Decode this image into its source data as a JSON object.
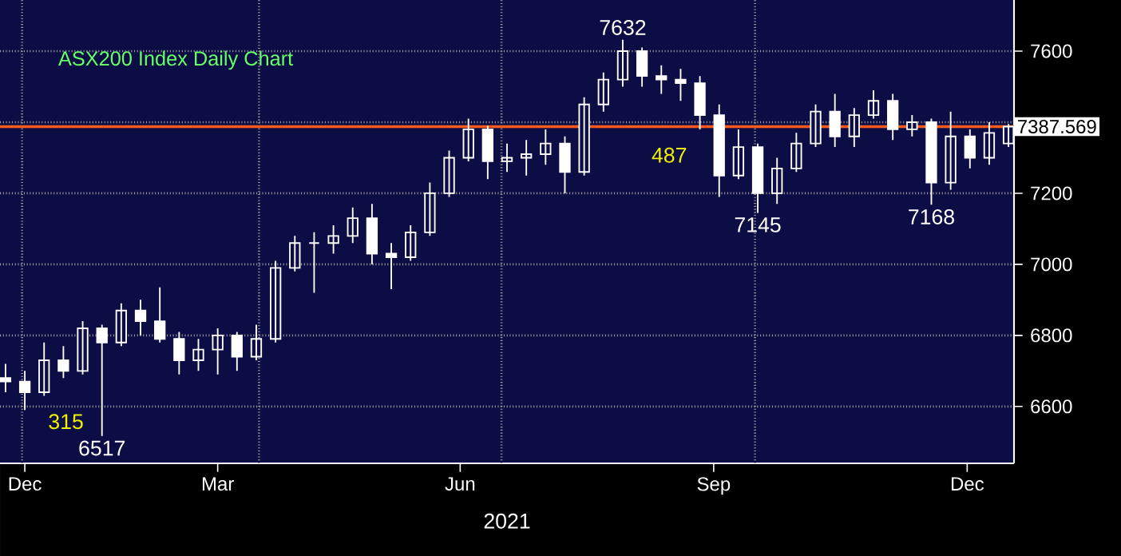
{
  "chart_data": {
    "type": "candlestick",
    "title": "ASX200 Index Daily Chart",
    "xlabel": "2021",
    "color": "#ffffff",
    "x": [
      "2020-12-23",
      "2020-12-30",
      "2021-01-06",
      "2021-01-13",
      "2021-01-20",
      "2021-01-27",
      "2021-02-03",
      "2021-02-10",
      "2021-02-17",
      "2021-02-24",
      "2021-03-03",
      "2021-03-10",
      "2021-03-17",
      "2021-03-24",
      "2021-03-31",
      "2021-04-07",
      "2021-04-14",
      "2021-04-21",
      "2021-04-28",
      "2021-05-05",
      "2021-05-12",
      "2021-05-19",
      "2021-05-26",
      "2021-06-02",
      "2021-06-09",
      "2021-06-16",
      "2021-06-23",
      "2021-06-30",
      "2021-07-07",
      "2021-07-14",
      "2021-07-21",
      "2021-07-28",
      "2021-08-04",
      "2021-08-11",
      "2021-08-18",
      "2021-08-25",
      "2021-09-01",
      "2021-09-08",
      "2021-09-15",
      "2021-09-22",
      "2021-09-29",
      "2021-10-06",
      "2021-10-13",
      "2021-10-20",
      "2021-10-27",
      "2021-11-03",
      "2021-11-10",
      "2021-11-17",
      "2021-11-24",
      "2021-12-01",
      "2021-12-08",
      "2021-12-15",
      "2021-12-22"
    ],
    "ohlc": [
      [
        6680,
        6720,
        6640,
        6670
      ],
      [
        6670,
        6700,
        6590,
        6640
      ],
      [
        6640,
        6780,
        6630,
        6730
      ],
      [
        6730,
        6770,
        6680,
        6700
      ],
      [
        6700,
        6840,
        6690,
        6820
      ],
      [
        6820,
        6830,
        6517,
        6780
      ],
      [
        6780,
        6890,
        6770,
        6870
      ],
      [
        6870,
        6900,
        6800,
        6840
      ],
      [
        6840,
        6935,
        6780,
        6790
      ],
      [
        6790,
        6810,
        6690,
        6730
      ],
      [
        6730,
        6790,
        6700,
        6760
      ],
      [
        6760,
        6820,
        6690,
        6800
      ],
      [
        6800,
        6810,
        6700,
        6740
      ],
      [
        6740,
        6830,
        6730,
        6790
      ],
      [
        6790,
        7010,
        6780,
        6990
      ],
      [
        6990,
        7080,
        6980,
        7060
      ],
      [
        7060,
        7090,
        6920,
        7060
      ],
      [
        7060,
        7110,
        7030,
        7080
      ],
      [
        7080,
        7160,
        7060,
        7130
      ],
      [
        7130,
        7170,
        7000,
        7030
      ],
      [
        7030,
        7060,
        6930,
        7020
      ],
      [
        7020,
        7110,
        7010,
        7090
      ],
      [
        7090,
        7230,
        7080,
        7200
      ],
      [
        7200,
        7320,
        7190,
        7300
      ],
      [
        7300,
        7410,
        7290,
        7380
      ],
      [
        7380,
        7390,
        7240,
        7290
      ],
      [
        7290,
        7340,
        7260,
        7300
      ],
      [
        7300,
        7350,
        7250,
        7310
      ],
      [
        7310,
        7380,
        7280,
        7340
      ],
      [
        7340,
        7360,
        7200,
        7260
      ],
      [
        7260,
        7470,
        7250,
        7450
      ],
      [
        7450,
        7540,
        7430,
        7520
      ],
      [
        7520,
        7632,
        7500,
        7600
      ],
      [
        7600,
        7610,
        7500,
        7530
      ],
      [
        7530,
        7560,
        7480,
        7520
      ],
      [
        7520,
        7550,
        7460,
        7510
      ],
      [
        7510,
        7530,
        7380,
        7420
      ],
      [
        7420,
        7450,
        7190,
        7250
      ],
      [
        7250,
        7380,
        7240,
        7330
      ],
      [
        7330,
        7340,
        7145,
        7200
      ],
      [
        7200,
        7300,
        7170,
        7270
      ],
      [
        7270,
        7370,
        7260,
        7340
      ],
      [
        7340,
        7450,
        7330,
        7430
      ],
      [
        7430,
        7480,
        7330,
        7360
      ],
      [
        7360,
        7440,
        7330,
        7420
      ],
      [
        7420,
        7490,
        7410,
        7460
      ],
      [
        7460,
        7480,
        7350,
        7380
      ],
      [
        7380,
        7420,
        7360,
        7400
      ],
      [
        7400,
        7410,
        7168,
        7230
      ],
      [
        7230,
        7430,
        7210,
        7360
      ],
      [
        7360,
        7380,
        7270,
        7300
      ],
      [
        7300,
        7400,
        7280,
        7370
      ],
      [
        7340,
        7395,
        7330,
        7387.569
      ]
    ],
    "xlim": [
      "2020-12-21",
      "2021-12-24"
    ],
    "xticks": [
      {
        "value": "2020-12-30",
        "label": "Dec"
      },
      {
        "value": "2021-03-10",
        "label": "Mar"
      },
      {
        "value": "2021-06-06",
        "label": "Jun"
      },
      {
        "value": "2021-09-06",
        "label": "Sep"
      },
      {
        "value": "2021-12-07",
        "label": "Dec"
      },
      {
        "value": "2020-12-29",
        "label": null
      },
      {
        "value": "2021-03-25",
        "label": null
      },
      {
        "value": "2021-06-21",
        "label": null
      },
      {
        "value": "2021-09-21",
        "label": null
      }
    ],
    "ylim": [
      6440,
      7744
    ],
    "yticks": [
      6600,
      6800,
      7000,
      7200,
      {
        "value": 7400,
        "label": null
      },
      7600
    ],
    "grid": true,
    "ref_lines": [
      {
        "axis": "y",
        "value": 7387.569,
        "label": "7387.569",
        "color": "#ff5a1e"
      }
    ],
    "annotations": [
      {
        "text": "7632",
        "x": "2021-08-04",
        "y": 7632
      },
      {
        "text": "6517",
        "x": "2021-01-27",
        "y": 6517
      },
      {
        "text": "7145",
        "x": "2021-09-22",
        "y": 7145
      },
      {
        "text": "7168",
        "x": "2021-11-24",
        "y": 7168
      },
      "315",
      "487"
    ]
  }
}
